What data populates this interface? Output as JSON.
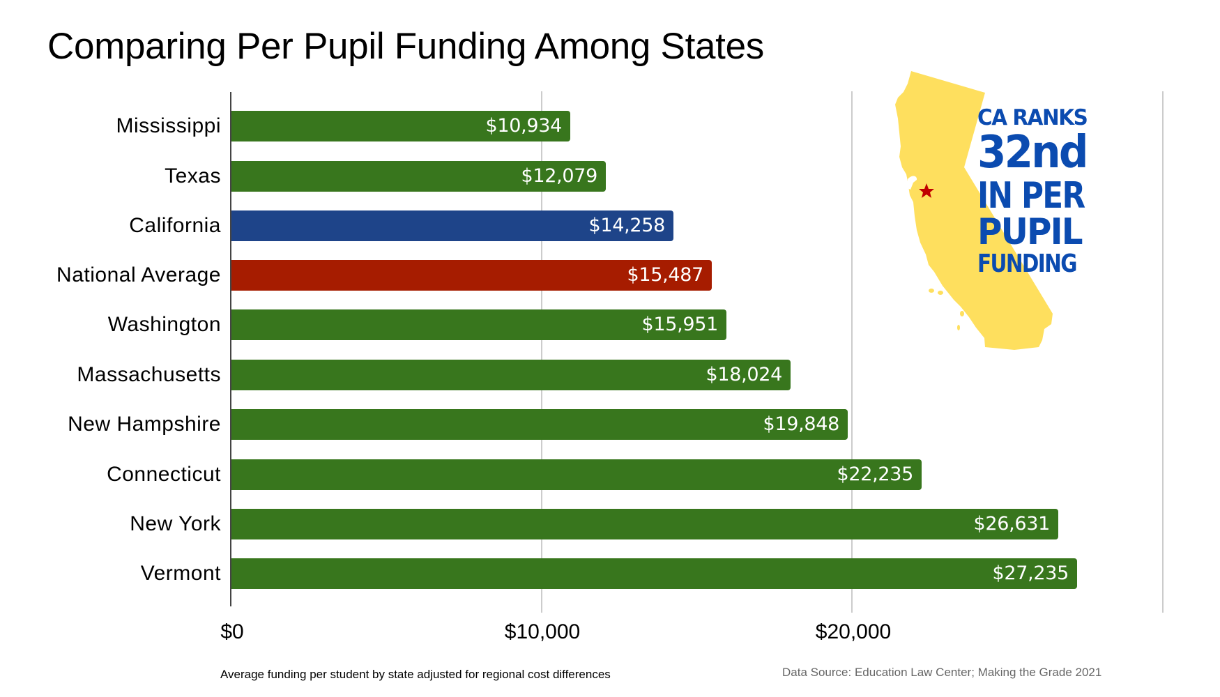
{
  "title": "Comparing Per Pupil Funding Among States",
  "footnote": "Average funding per student by state adjusted for regional cost differences",
  "source": "Data Source:  Education Law Center; Making the Grade 2021",
  "callout": {
    "line1": "CA RANKS",
    "line2": "32nd",
    "line3": "IN PER",
    "line4": "PUPIL",
    "line5": "FUNDING",
    "text_color": "#0b4bb0",
    "map_color": "#fedf5e",
    "star_color": "#c00000",
    "map_icon": "california-map-icon",
    "star_icon": "star-icon"
  },
  "colors": {
    "default": "#38761d",
    "california": "#1e4489",
    "national_average": "#a61c00",
    "gridline": "#cccccc",
    "axis": "#444444"
  },
  "chart_data": {
    "type": "bar",
    "orientation": "horizontal",
    "title": "Comparing Per Pupil Funding Among States",
    "xlabel": "",
    "ylabel": "",
    "categories": [
      "Mississippi",
      "Texas",
      "California",
      "National Average",
      "Washington",
      "Massachusetts",
      "New Hampshire",
      "Connecticut",
      "New York",
      "Vermont"
    ],
    "values": [
      10934,
      12079,
      14258,
      15487,
      15951,
      18024,
      19848,
      22235,
      26631,
      27235
    ],
    "value_labels": [
      "$10,934",
      "$12,079",
      "$14,258",
      "$15,487",
      "$15,951",
      "$18,024",
      "$19,848",
      "$22,235",
      "$26,631",
      "$27,235"
    ],
    "bar_colors": [
      "#38761d",
      "#38761d",
      "#1e4489",
      "#a61c00",
      "#38761d",
      "#38761d",
      "#38761d",
      "#38761d",
      "#38761d",
      "#38761d"
    ],
    "xlim": [
      0,
      30000
    ],
    "x_ticks": [
      0,
      10000,
      20000,
      30000
    ],
    "x_tick_labels": [
      "$0",
      "$10,000",
      "$20,000",
      ""
    ],
    "grid": true,
    "legend": "none",
    "annotations": [
      "CA RANKS 32nd IN PER PUPIL FUNDING",
      "Average funding per student by state adjusted for regional cost differences",
      "Data Source:  Education Law Center; Making the Grade 2021"
    ]
  }
}
